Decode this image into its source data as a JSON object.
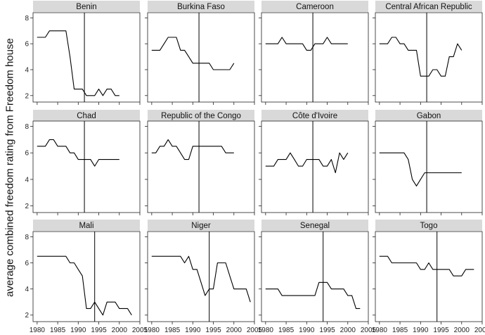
{
  "figure": {
    "ylabel": "average combined freedom rating from Freedom house"
  },
  "chart_data": {
    "type": "line",
    "layout": "3x4 small multiples",
    "ylabel": "average combined freedom rating from Freedom house",
    "xlabel": "",
    "xlim": [
      1979,
      2005
    ],
    "ylim": [
      1.5,
      8.4
    ],
    "x_ticks": [
      1980,
      1985,
      1990,
      1995,
      2000,
      2005
    ],
    "y_ticks": [
      2,
      4,
      6,
      8
    ],
    "grid": false,
    "line_color": "#000000",
    "strip_color": "#d9d9d9",
    "panels": [
      {
        "title": "Benin",
        "vline": 1991.5,
        "x": [
          1980,
          1981,
          1982,
          1983,
          1984,
          1985,
          1986,
          1987,
          1988,
          1989,
          1990,
          1991,
          1992,
          1993,
          1994,
          1995,
          1996,
          1997,
          1998,
          1999,
          2000
        ],
        "y": [
          6.5,
          6.5,
          6.5,
          7,
          7,
          7,
          7,
          7,
          5,
          2.5,
          2.5,
          2.5,
          2,
          2,
          2,
          2.5,
          2,
          2.5,
          2.5,
          2,
          2
        ]
      },
      {
        "title": "Burkina Faso",
        "vline": 1991.5,
        "x": [
          1980,
          1981,
          1982,
          1983,
          1984,
          1985,
          1986,
          1987,
          1988,
          1989,
          1990,
          1991,
          1992,
          1993,
          1994,
          1995,
          1996,
          1997,
          1998,
          1999,
          2000
        ],
        "y": [
          5.5,
          5.5,
          5.5,
          6,
          6.5,
          6.5,
          6.5,
          5.5,
          5.5,
          5,
          4.5,
          4.5,
          4.5,
          4.5,
          4.5,
          4,
          4,
          4,
          4,
          4,
          4.5
        ]
      },
      {
        "title": "Cameroon",
        "vline": 1991.5,
        "x": [
          1980,
          1981,
          1982,
          1983,
          1984,
          1985,
          1986,
          1987,
          1988,
          1989,
          1990,
          1991,
          1992,
          1993,
          1994,
          1995,
          1996,
          1997,
          1998,
          1999,
          2000
        ],
        "y": [
          6,
          6,
          6,
          6,
          6.5,
          6,
          6,
          6,
          6,
          6,
          5.5,
          5.5,
          6,
          6,
          6,
          6.5,
          6,
          6,
          6,
          6,
          6
        ]
      },
      {
        "title": "Central African Republic",
        "vline": 1991.5,
        "x": [
          1980,
          1981,
          1982,
          1983,
          1984,
          1985,
          1986,
          1987,
          1988,
          1989,
          1990,
          1991,
          1992,
          1993,
          1994,
          1995,
          1996,
          1997,
          1998,
          1999,
          2000
        ],
        "y": [
          6,
          6,
          6,
          6.5,
          6.5,
          6,
          6,
          5.5,
          5.5,
          5.5,
          3.5,
          3.5,
          3.5,
          4,
          4,
          3.5,
          3.5,
          5,
          5,
          6,
          5.5
        ]
      },
      {
        "title": "Chad",
        "vline": 1991.5,
        "x": [
          1980,
          1981,
          1982,
          1983,
          1984,
          1985,
          1986,
          1987,
          1988,
          1989,
          1990,
          1991,
          1992,
          1993,
          1994,
          1995,
          1996,
          1997,
          1998,
          1999,
          2000
        ],
        "y": [
          6.5,
          6.5,
          6.5,
          7,
          7,
          6.5,
          6.5,
          6.5,
          6,
          6,
          5.5,
          5.5,
          5.5,
          5.5,
          5,
          5.5,
          5.5,
          5.5,
          5.5,
          5.5,
          5.5
        ]
      },
      {
        "title": "Republic of the Congo",
        "vline": 1991.5,
        "x": [
          1980,
          1981,
          1982,
          1983,
          1984,
          1985,
          1986,
          1987,
          1988,
          1989,
          1990,
          1991,
          1992,
          1993,
          1994,
          1995,
          1996,
          1997,
          1998,
          1999,
          2000
        ],
        "y": [
          6,
          6,
          6.5,
          6.5,
          7,
          6.5,
          6.5,
          6,
          5.5,
          5.5,
          6.5,
          6.5,
          6.5,
          6.5,
          6.5,
          6.5,
          6.5,
          6.5,
          6,
          6,
          6
        ]
      },
      {
        "title": "Côte d'Ivoire",
        "vline": 1991.5,
        "x": [
          1980,
          1981,
          1982,
          1983,
          1984,
          1985,
          1986,
          1987,
          1988,
          1989,
          1990,
          1991,
          1992,
          1993,
          1994,
          1995,
          1996,
          1997,
          1998,
          1999,
          2000
        ],
        "y": [
          5,
          5,
          5,
          5.5,
          5.5,
          5.5,
          6,
          5.5,
          5,
          5,
          5.5,
          5.5,
          5.5,
          5.5,
          5,
          5,
          5.5,
          4.5,
          6,
          5.5,
          6
        ]
      },
      {
        "title": "Gabon",
        "vline": 1991.5,
        "x": [
          1980,
          1981,
          1982,
          1983,
          1984,
          1985,
          1986,
          1987,
          1988,
          1989,
          1990,
          1991,
          1992,
          1993,
          1994,
          1995,
          1996,
          1997,
          1998,
          1999,
          2000
        ],
        "y": [
          6,
          6,
          6,
          6,
          6,
          6,
          6,
          5.5,
          4,
          3.5,
          4,
          4.5,
          4.5,
          4.5,
          4.5,
          4.5,
          4.5,
          4.5,
          4.5,
          4.5,
          4.5
        ]
      },
      {
        "title": "Mali",
        "vline": 1994,
        "x": [
          1980,
          1981,
          1982,
          1983,
          1984,
          1985,
          1986,
          1987,
          1988,
          1989,
          1990,
          1991,
          1992,
          1993,
          1994,
          1995,
          1996,
          1997,
          1998,
          1999,
          2000,
          2001,
          2002,
          2003
        ],
        "y": [
          6.5,
          6.5,
          6.5,
          6.5,
          6.5,
          6.5,
          6.5,
          6.5,
          6,
          6,
          5.5,
          5,
          2.5,
          2.5,
          3,
          2.5,
          2,
          3,
          3,
          3,
          2.5,
          2.5,
          2.5,
          2
        ]
      },
      {
        "title": "Niger",
        "vline": 1994,
        "x": [
          1980,
          1981,
          1982,
          1983,
          1984,
          1985,
          1986,
          1987,
          1988,
          1989,
          1990,
          1991,
          1992,
          1993,
          1994,
          1995,
          1996,
          1997,
          1998,
          1999,
          2000,
          2001,
          2002,
          2003,
          2004
        ],
        "y": [
          6.5,
          6.5,
          6.5,
          6.5,
          6.5,
          6.5,
          6.5,
          6.5,
          6,
          6.5,
          5.5,
          5.5,
          4.5,
          3.5,
          4,
          4,
          6,
          6,
          6,
          5,
          4,
          4,
          4,
          4,
          3
        ]
      },
      {
        "title": "Senegal",
        "vline": 1994,
        "x": [
          1980,
          1981,
          1982,
          1983,
          1984,
          1985,
          1986,
          1987,
          1988,
          1989,
          1990,
          1991,
          1992,
          1993,
          1994,
          1995,
          1996,
          1997,
          1998,
          1999,
          2000,
          2001,
          2002,
          2003
        ],
        "y": [
          4,
          4,
          4,
          4,
          3.5,
          3.5,
          3.5,
          3.5,
          3.5,
          3.5,
          3.5,
          3.5,
          3.5,
          4.5,
          4.5,
          4.5,
          4,
          4,
          4,
          4,
          3.5,
          3.5,
          2.5,
          2.5
        ]
      },
      {
        "title": "Togo",
        "vline": 1994,
        "x": [
          1980,
          1981,
          1982,
          1983,
          1984,
          1985,
          1986,
          1987,
          1988,
          1989,
          1990,
          1991,
          1992,
          1993,
          1994,
          1995,
          1996,
          1997,
          1998,
          1999,
          2000,
          2001,
          2002,
          2003
        ],
        "y": [
          6.5,
          6.5,
          6.5,
          6,
          6,
          6,
          6,
          6,
          6,
          6,
          5.5,
          5.5,
          6,
          5.5,
          5.5,
          5.5,
          5.5,
          5.5,
          5,
          5,
          5,
          5.5,
          5.5,
          5.5
        ]
      }
    ]
  }
}
